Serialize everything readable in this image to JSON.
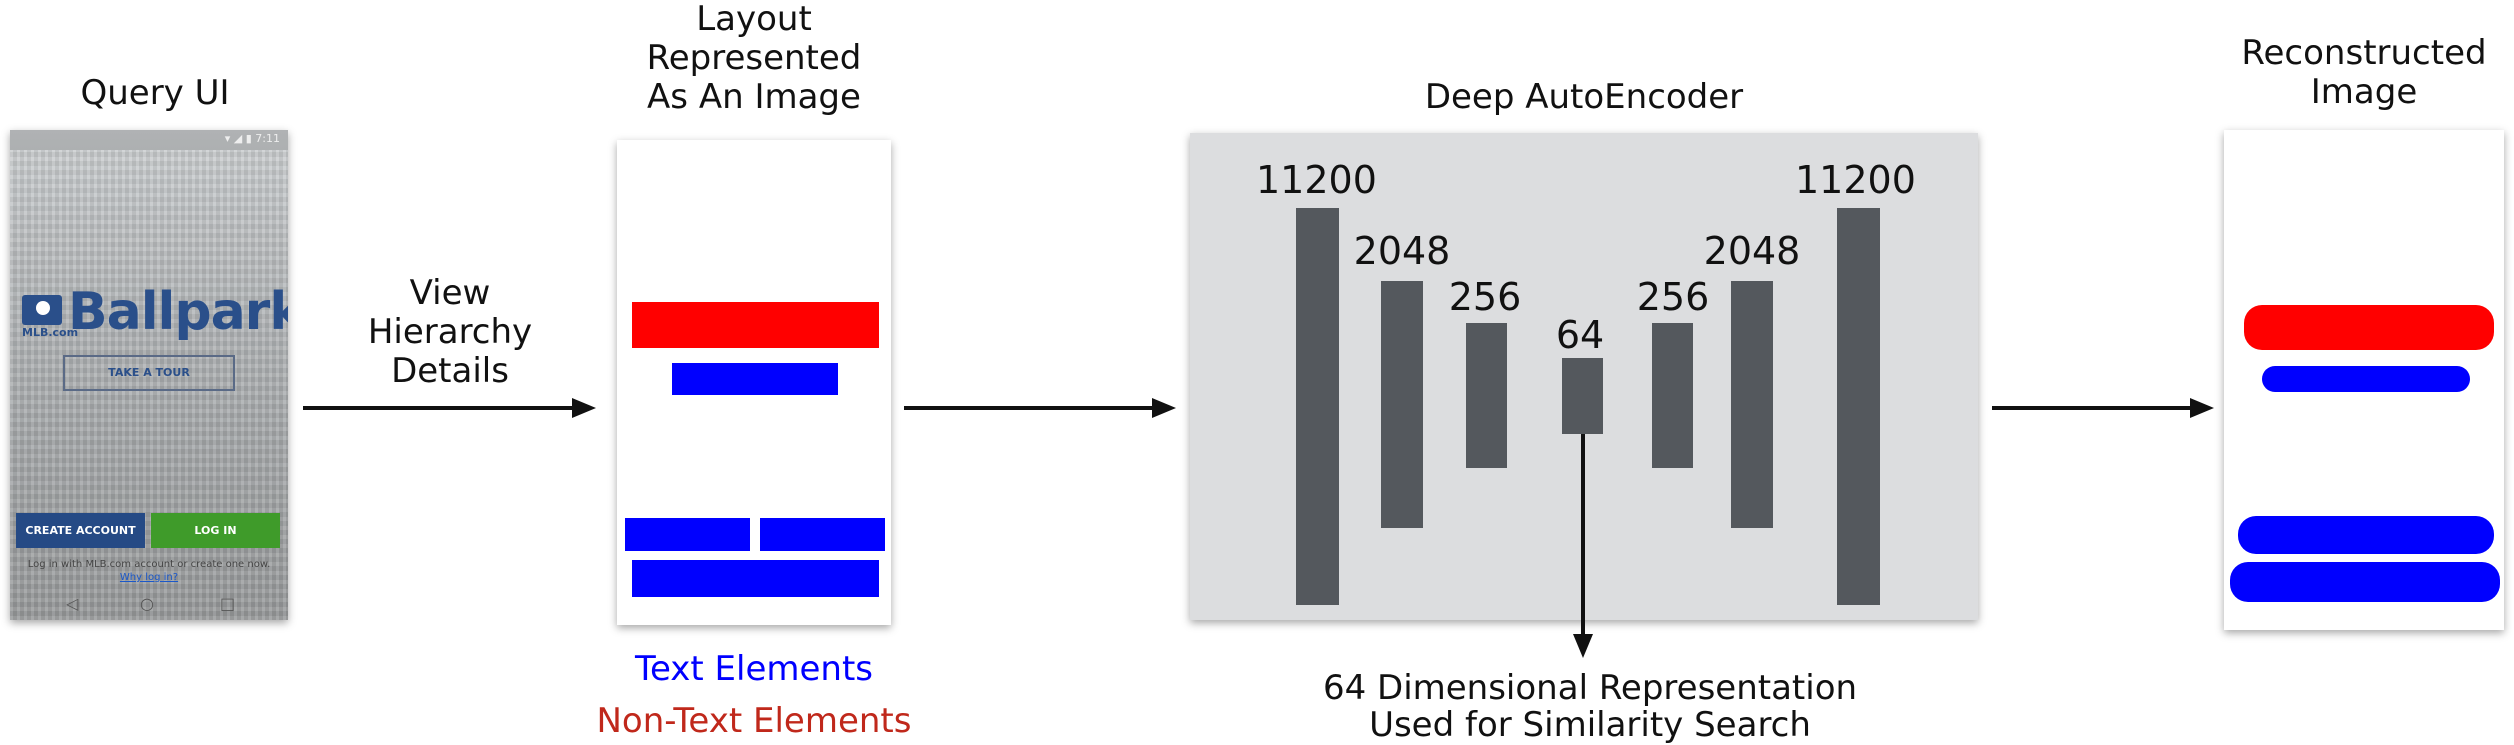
{
  "labels": {
    "query_ui": "Query UI",
    "layout_line1": "Layout",
    "layout_line2": "Represented",
    "layout_line3": "As An Image",
    "view_line1": "View",
    "view_line2": "Hierarchy",
    "view_line3": "Details",
    "deep_autoencoder": "Deep AutoEncoder",
    "recon_line1": "Reconstructed",
    "recon_line2": "Image",
    "legend_text": "Text Elements",
    "legend_nontext": "Non-Text Elements",
    "output_line1": "64 Dimensional Representation",
    "output_line2": "Used for Similarity Search"
  },
  "phone": {
    "status": "▾ ◢ ▮ 7:11",
    "logo_small": "MLB.com",
    "logo_text": "Ballpark",
    "tour_button": "TAKE A TOUR",
    "create_button": "CREATE ACCOUNT",
    "login_button": "LOG IN",
    "footnote_text": "Log in with MLB.com account or create one now.",
    "footnote_link": "Why log in?",
    "nav_back": "◁",
    "nav_home": "○",
    "nav_recent": "□"
  },
  "autoencoder": {
    "layers": [
      11200,
      2048,
      256,
      64,
      256,
      2048,
      11200
    ],
    "labels": [
      "11200",
      "2048",
      "256",
      "64",
      "256",
      "2048",
      "11200"
    ]
  },
  "colors": {
    "text_element": "#0000ff",
    "non_text_element": "#ff0000",
    "legend_nontext": "#c0281b",
    "panel": "#dcdddf",
    "bar": "#54585d"
  }
}
